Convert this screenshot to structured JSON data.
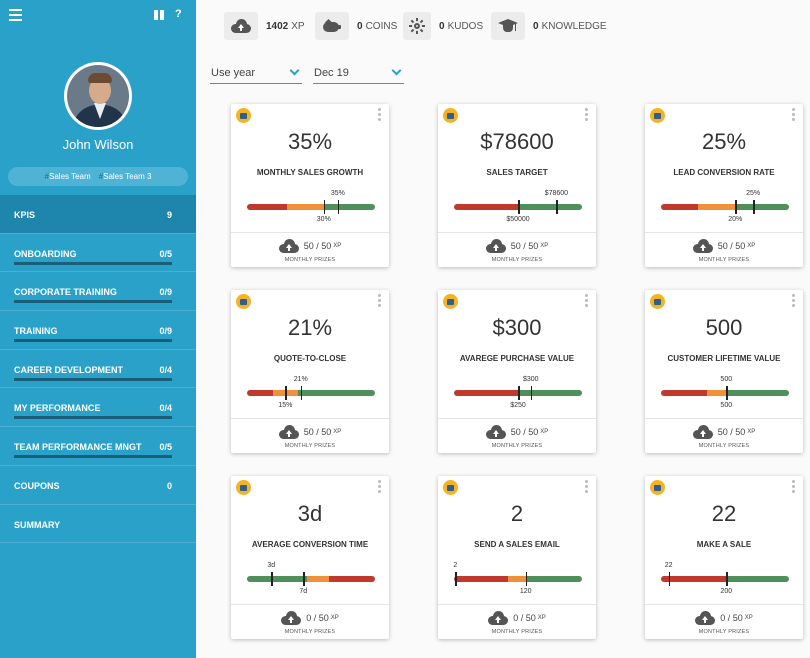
{
  "user": {
    "name": "John Wilson",
    "teams": [
      "Sales Team",
      "Sales Team 3"
    ],
    "team_prefix": "#"
  },
  "header": {
    "help_label": "?"
  },
  "stats": {
    "xp": {
      "value": "1402",
      "label": "XP"
    },
    "coins": {
      "value": "0",
      "label": "COINS"
    },
    "kudos": {
      "value": "0",
      "label": "KUDOS"
    },
    "knowledge": {
      "value": "0",
      "label": "KNOWLEDGE"
    }
  },
  "filters": {
    "period": "Use year",
    "month": "Dec 19"
  },
  "nav": [
    {
      "label": "KPIS",
      "count": "9",
      "active": true,
      "bar": false
    },
    {
      "label": "ONBOARDING",
      "count": "0/5",
      "active": false,
      "bar": true
    },
    {
      "label": "CORPORATE TRAINING",
      "count": "0/9",
      "active": false,
      "bar": true
    },
    {
      "label": "TRAINING",
      "count": "0/9",
      "active": false,
      "bar": true
    },
    {
      "label": "CAREER DEVELOPMENT",
      "count": "0/4",
      "active": false,
      "bar": true
    },
    {
      "label": "MY PERFORMANCE",
      "count": "0/4",
      "active": false,
      "bar": true
    },
    {
      "label": "TEAM PERFORMANCE MNGT",
      "count": "0/5",
      "active": false,
      "bar": true
    },
    {
      "label": "COUPONS",
      "count": "0",
      "active": false,
      "bar": false
    },
    {
      "label": "SUMMARY",
      "count": "",
      "active": false,
      "bar": false
    }
  ],
  "colors": {
    "red": "#c0392b",
    "orange": "#f0913a",
    "green": "#4e8f5c",
    "sidebar": "#2aa1c9",
    "icon_badge": "#f5b324"
  },
  "cards": [
    {
      "value": "35%",
      "title": "MONTHLY SALES GROWTH",
      "actual_label": "35%",
      "target_label": "30%",
      "actual_pos": 0.71,
      "target_pos": 0.6,
      "segments": [
        [
          "red",
          0.31
        ],
        [
          "orange",
          0.29
        ],
        [
          "green",
          0.4
        ]
      ],
      "prize": "50 / 50",
      "prize_unit": "XP",
      "prize_label": "MONTHLY PRIZES",
      "icon": "chart-icon"
    },
    {
      "value": "$78600",
      "title": "SALES TARGET",
      "actual_label": "$78600",
      "target_label": "$50000",
      "actual_pos": 0.8,
      "target_pos": 0.5,
      "segments": [
        [
          "red",
          0.5
        ],
        [
          "green",
          0.5
        ]
      ],
      "prize": "50 / 50",
      "prize_unit": "XP",
      "prize_label": "MONTHLY PRIZES",
      "icon": "target-icon"
    },
    {
      "value": "25%",
      "title": "LEAD CONVERSION RATE",
      "actual_label": "25%",
      "target_label": "20%",
      "actual_pos": 0.72,
      "target_pos": 0.58,
      "segments": [
        [
          "red",
          0.29
        ],
        [
          "orange",
          0.29
        ],
        [
          "green",
          0.42
        ]
      ],
      "prize": "50 / 50",
      "prize_unit": "XP",
      "prize_label": "MONTHLY PRIZES",
      "icon": "bars-icon"
    },
    {
      "value": "21%",
      "title": "QUOTE-TO-CLOSE",
      "actual_label": "21%",
      "target_label": "15%",
      "actual_pos": 0.42,
      "target_pos": 0.3,
      "segments": [
        [
          "red",
          0.2
        ],
        [
          "orange",
          0.2
        ],
        [
          "green",
          0.6
        ]
      ],
      "prize": "50 / 50",
      "prize_unit": "XP",
      "prize_label": "MONTHLY PRIZES",
      "icon": "cart-icon"
    },
    {
      "value": "$300",
      "title": "AVAREGE PURCHASE VALUE",
      "actual_label": "$300",
      "target_label": "$250",
      "actual_pos": 0.6,
      "target_pos": 0.5,
      "segments": [
        [
          "red",
          0.5
        ],
        [
          "green",
          0.5
        ]
      ],
      "prize": "50 / 50",
      "prize_unit": "XP",
      "prize_label": "MONTHLY PRIZES",
      "icon": "shirt-icon"
    },
    {
      "value": "500",
      "title": "CUSTOMER LIFETIME VALUE",
      "actual_label": "500",
      "target_label": "500",
      "actual_pos": 0.51,
      "target_pos": 0.51,
      "segments": [
        [
          "red",
          0.36
        ],
        [
          "orange",
          0.15
        ],
        [
          "green",
          0.49
        ]
      ],
      "prize": "50 / 50",
      "prize_unit": "XP",
      "prize_label": "MONTHLY PRIZES",
      "icon": "handshake-icon"
    },
    {
      "value": "3d",
      "title": "AVERAGE CONVERSION TIME",
      "actual_label": "3d",
      "target_label": "7d",
      "actual_pos": 0.19,
      "target_pos": 0.44,
      "segments": [
        [
          "green",
          0.47
        ],
        [
          "orange",
          0.17
        ],
        [
          "red",
          0.36
        ]
      ],
      "prize": "0 / 50",
      "prize_unit": "XP",
      "prize_label": "MONTHLY PRIZES",
      "icon": "document-icon"
    },
    {
      "value": "2",
      "title": "SEND A SALES EMAIL",
      "actual_label": "2",
      "target_label": "120",
      "actual_pos": 0.01,
      "target_pos": 0.56,
      "segments": [
        [
          "red",
          0.42
        ],
        [
          "orange",
          0.14
        ],
        [
          "green",
          0.44
        ]
      ],
      "prize": "0 / 50",
      "prize_unit": "XP",
      "prize_label": "MONTHLY PRIZES",
      "icon": "email-icon"
    },
    {
      "value": "22",
      "title": "MAKE A SALE",
      "actual_label": "22",
      "target_label": "200",
      "actual_pos": 0.06,
      "target_pos": 0.51,
      "segments": [
        [
          "red",
          0.51
        ],
        [
          "green",
          0.49
        ]
      ],
      "prize": "0 / 50",
      "prize_unit": "XP",
      "prize_label": "MONTHLY PRIZES",
      "icon": "pencil-icon"
    }
  ]
}
